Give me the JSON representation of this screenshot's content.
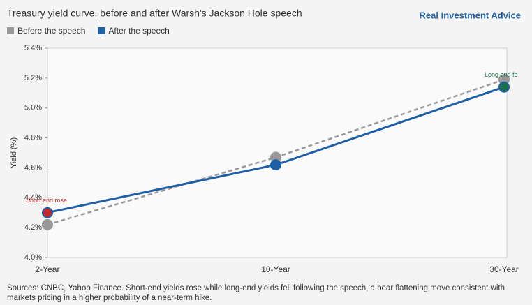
{
  "brand": "Real Investment Advice",
  "chart_data": {
    "type": "line",
    "title": "Treasury yield curve, before and after Warsh's Jackson Hole speech",
    "y_label": "Yield (%)",
    "categories": [
      "2-Year",
      "10-Year",
      "30-Year"
    ],
    "series": [
      {
        "name": "Before the speech",
        "color": "#999999",
        "dashed": true,
        "values": [
          4.22,
          4.67,
          5.19
        ]
      },
      {
        "name": "After the speech",
        "color": "#1f5fa6",
        "dashed": false,
        "values": [
          4.3,
          4.62,
          5.14
        ]
      }
    ],
    "annotations": [
      {
        "text": "Short end rose",
        "color": "#c0282e"
      },
      {
        "text": "Long end fe",
        "color": "#1a6e4a"
      }
    ],
    "ylim": [
      4.0,
      5.4
    ],
    "yticks": [
      {
        "value": 4.0,
        "label": "4.0%"
      },
      {
        "value": 4.2,
        "label": "4.2%"
      },
      {
        "value": 4.4,
        "label": "4.4%"
      },
      {
        "value": 4.6,
        "label": "4.6%"
      },
      {
        "value": 4.8,
        "label": "4.8%"
      },
      {
        "value": 5.0,
        "label": "5.0%"
      },
      {
        "value": 5.2,
        "label": "5.2%"
      },
      {
        "value": 5.4,
        "label": "5.4%"
      }
    ],
    "grid": false,
    "source_lines": [
      "Sources: CNBC, Yahoo Finance. Short-end yields rose while long-end yields fell following the speech, a bear flattening move consistent with",
      "markets pricing in a higher probability of a near-term hike."
    ]
  }
}
